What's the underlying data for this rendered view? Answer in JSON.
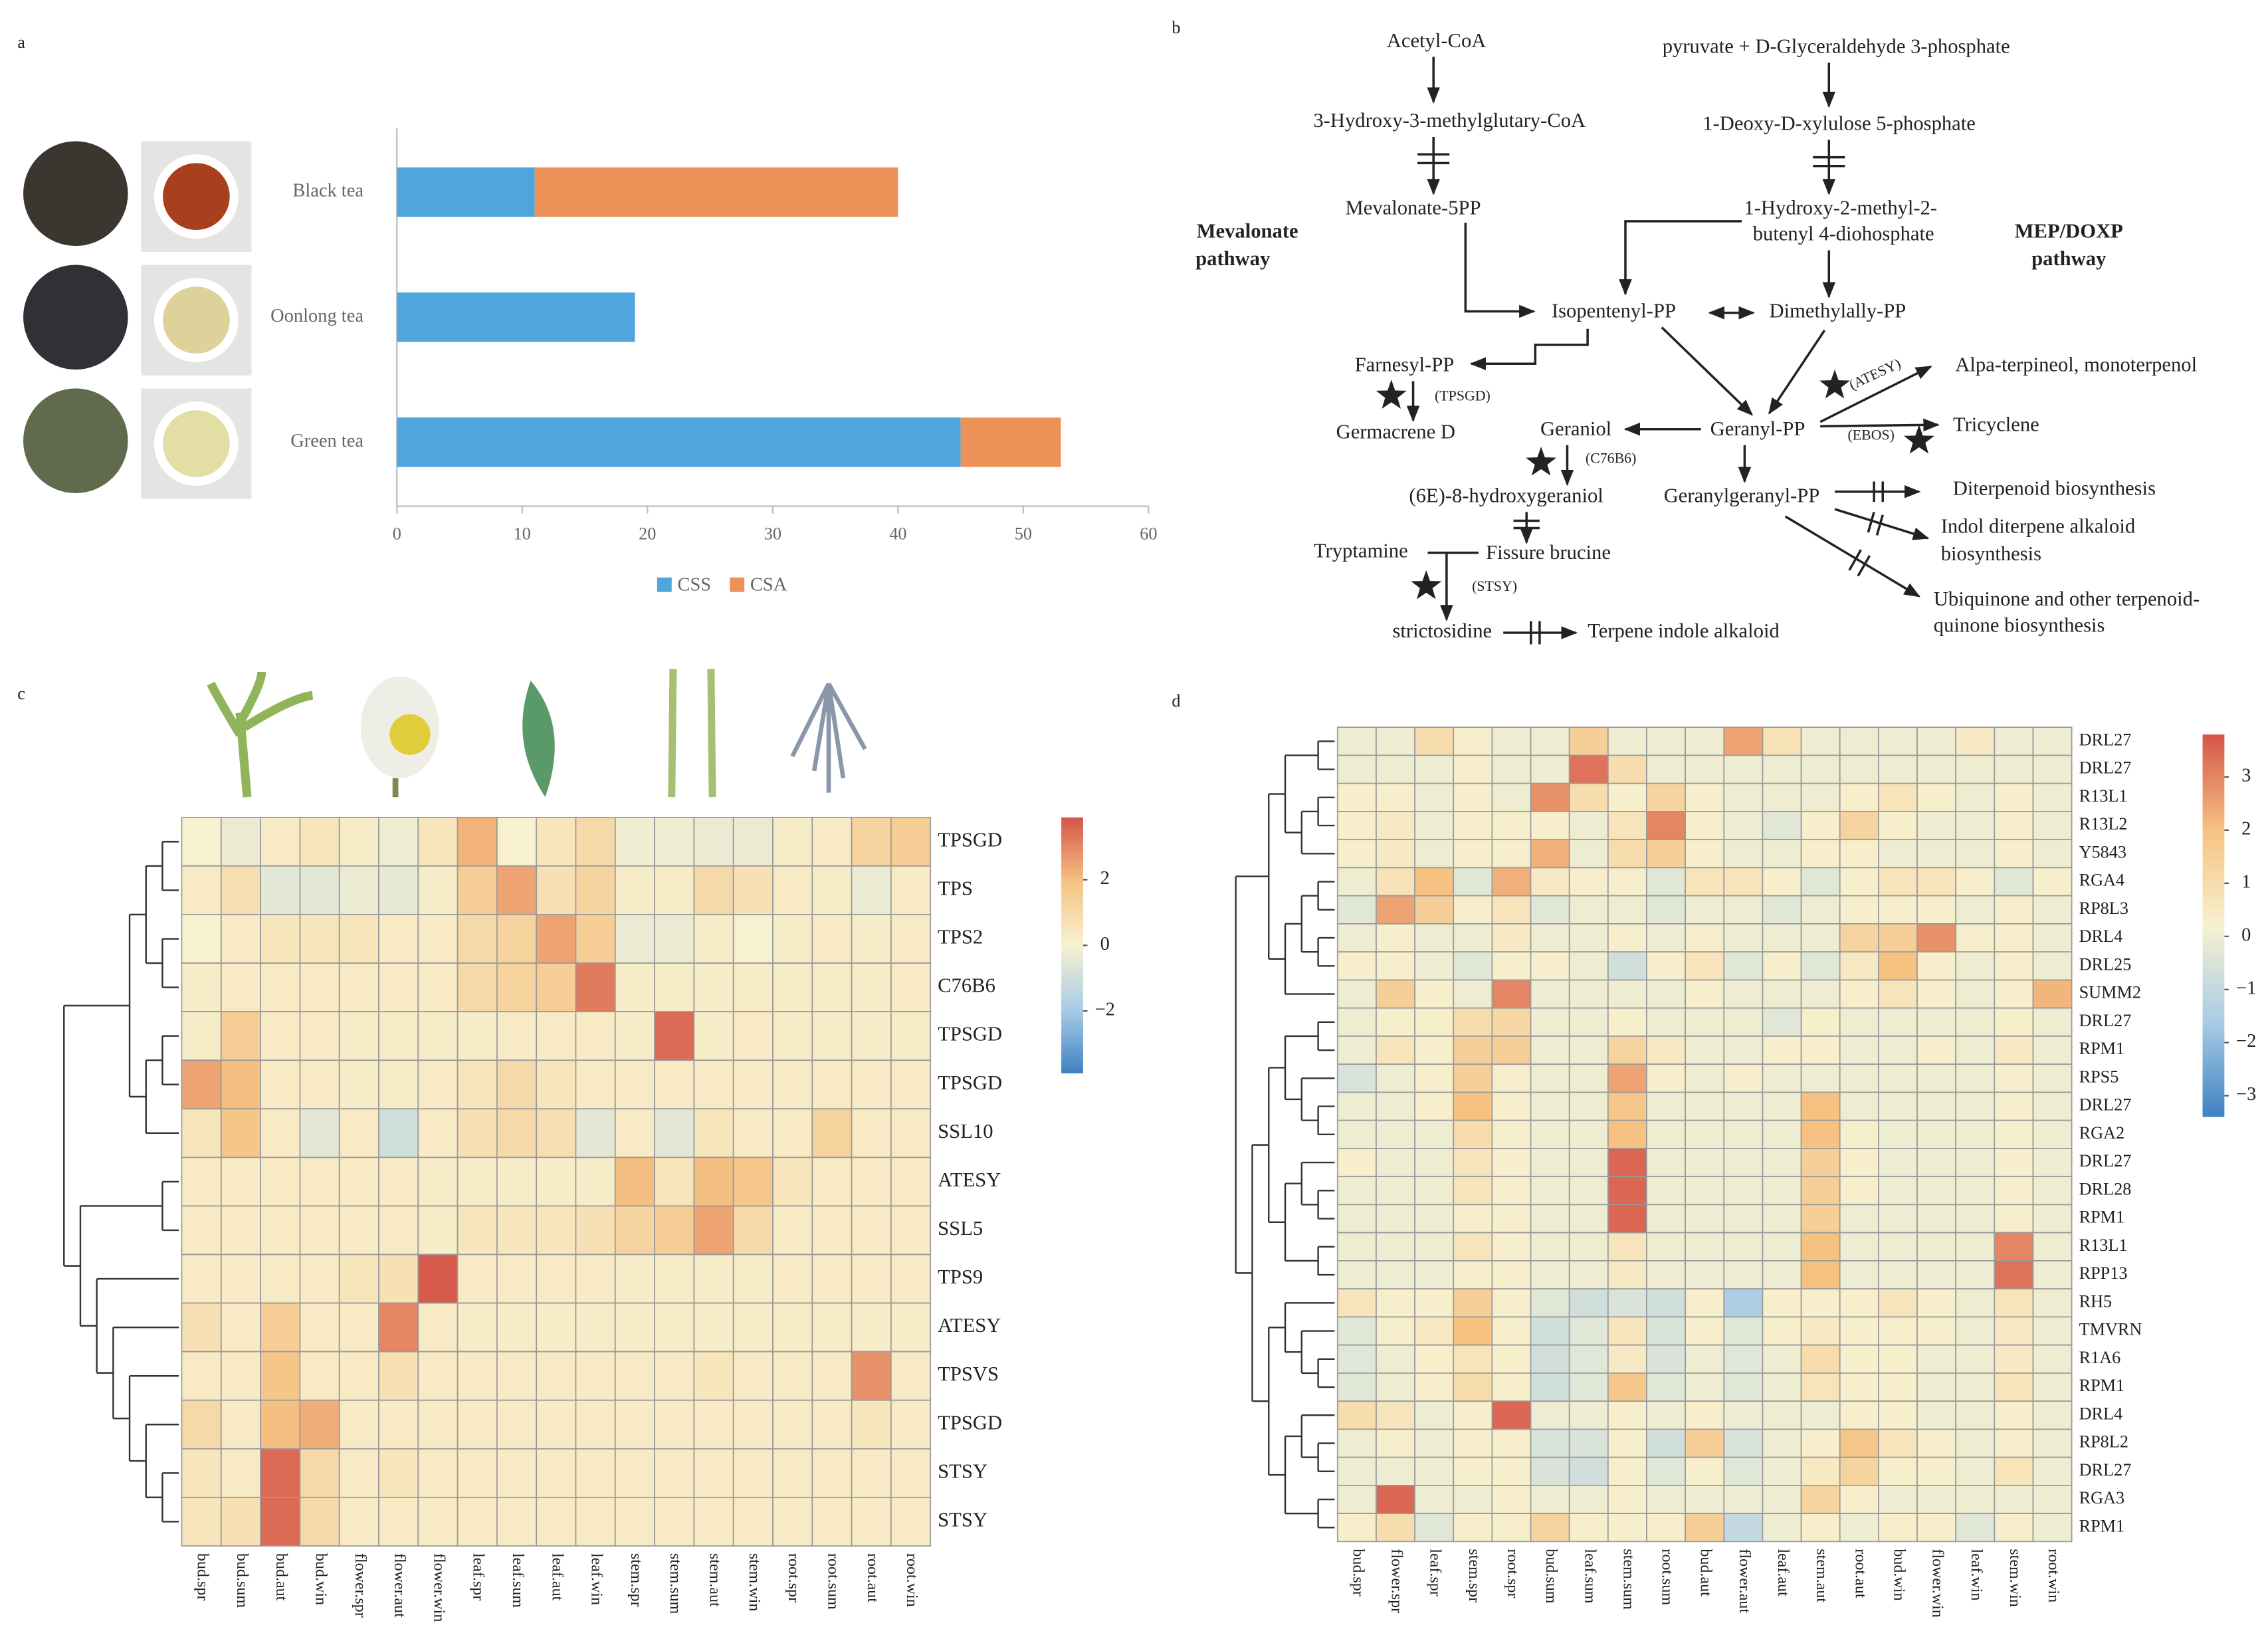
{
  "chart_data": [
    {
      "type": "bar",
      "panel": "a",
      "orientation": "horizontal",
      "stacked": true,
      "legend": "bottom",
      "categories": [
        "Black tea",
        "Oonlong tea",
        "Green tea"
      ],
      "series": [
        {
          "name": "CSS",
          "color": "#4ea6dc",
          "values": [
            11,
            19,
            45
          ]
        },
        {
          "name": "CSA",
          "color": "#ec9158",
          "values": [
            29,
            0,
            8
          ]
        }
      ],
      "xlim": [
        0,
        60
      ],
      "xticks": [
        0,
        10,
        20,
        30,
        40,
        50,
        60
      ]
    },
    {
      "type": "heatmap",
      "panel": "c",
      "rows": [
        "TPSGD",
        "TPS",
        "TPS2",
        "C76B6",
        "TPSGD",
        "TPSGD",
        "SSL10",
        "ATESY",
        "SSL5",
        "TPS9",
        "ATESY",
        "TPSVS",
        "TPSGD",
        "STSY",
        "STSY"
      ],
      "columns": [
        "bud.spr",
        "bud.sum",
        "bud.aut",
        "bud.win",
        "flower.spr",
        "flower.aut",
        "flower.win",
        "leaf.spr",
        "leaf.sum",
        "leaf.aut",
        "leaf.win",
        "stem.spr",
        "stem.sum",
        "stem.aut",
        "stem.win",
        "root.spr",
        "root.sum",
        "root.aut",
        "root.win"
      ],
      "values": [
        [
          0,
          -0.3,
          0.3,
          0.5,
          0.2,
          -0.2,
          0.5,
          2.2,
          0,
          0.5,
          1,
          -0.2,
          -0.2,
          -0.3,
          -0.3,
          0.2,
          0.3,
          1.2,
          1.5
        ],
        [
          0.3,
          0.8,
          -0.5,
          -0.5,
          -0.3,
          -0.4,
          0.2,
          1.5,
          2.5,
          0.7,
          1.2,
          0.2,
          0.2,
          1,
          0.7,
          0.3,
          0.2,
          -0.3,
          0.3
        ],
        [
          0,
          0.3,
          0.5,
          0.5,
          0.5,
          0.3,
          0.3,
          1,
          1.3,
          2.5,
          1.5,
          -0.3,
          -0.3,
          0.2,
          0,
          0.2,
          0.3,
          0.2,
          0.3
        ],
        [
          0.2,
          0.3,
          0.3,
          0.3,
          0.3,
          0.3,
          0.3,
          1,
          1.3,
          1.5,
          3.2,
          0.2,
          0.2,
          0.2,
          0.2,
          0.2,
          0.2,
          0.2,
          0.3
        ],
        [
          0.2,
          1.5,
          0.3,
          0.3,
          0.2,
          0.2,
          0.2,
          0.2,
          0.3,
          0.3,
          0.3,
          0.2,
          3.5,
          0.2,
          0.3,
          0.2,
          0.2,
          0.2,
          0.2
        ],
        [
          2.5,
          2,
          0.3,
          0.3,
          0.2,
          0.2,
          0.3,
          0.5,
          1,
          0.5,
          0.3,
          0.3,
          0.3,
          0.3,
          0.3,
          0.3,
          0.3,
          0.3,
          0.3
        ],
        [
          0.5,
          1.8,
          0.3,
          -0.5,
          0.3,
          -1,
          0.3,
          0.7,
          1,
          0.8,
          -0.5,
          0.3,
          -0.5,
          0.5,
          0.3,
          0.3,
          1.3,
          0.3,
          0.3
        ],
        [
          0.3,
          0.3,
          0.3,
          0.3,
          0.3,
          0.3,
          0.2,
          0.2,
          0.2,
          0.2,
          0.2,
          2,
          0.5,
          2,
          1.7,
          0.5,
          0.3,
          0.3,
          0.3
        ],
        [
          0.3,
          0.3,
          0.3,
          0.3,
          0.3,
          0.3,
          0.2,
          0.5,
          0.5,
          0.5,
          0.7,
          1.2,
          1.5,
          2.5,
          1,
          0.3,
          0.3,
          0.3,
          0.3
        ],
        [
          0.3,
          0.3,
          0.3,
          0.3,
          0.5,
          0.7,
          3.8,
          0.3,
          0.3,
          0.3,
          0.3,
          0.2,
          0.2,
          0.2,
          0.2,
          0.3,
          0.3,
          0.3,
          0.3
        ],
        [
          0.7,
          0.3,
          1.5,
          0.3,
          0.3,
          3,
          0.3,
          0.2,
          0.2,
          0.2,
          0.2,
          0.2,
          0.2,
          0.2,
          0.2,
          0.2,
          0.2,
          0.2,
          0.2
        ],
        [
          0.3,
          0.3,
          1.8,
          0.3,
          0.3,
          0.7,
          0.3,
          0.3,
          0.3,
          0.3,
          0.3,
          0.3,
          0.3,
          0.5,
          0.3,
          0.3,
          0.3,
          2.8,
          0.3
        ],
        [
          1,
          0.3,
          2,
          2.3,
          0.3,
          0.3,
          0.3,
          0.3,
          0.3,
          0.3,
          0.3,
          0.3,
          0.3,
          0.3,
          0.3,
          0.3,
          0.3,
          0.5,
          0.3
        ],
        [
          0.5,
          0.3,
          3.5,
          1,
          0.3,
          0.5,
          0.3,
          0.3,
          0.3,
          0.3,
          0.3,
          0.3,
          0.3,
          0.3,
          0.3,
          0.3,
          0.3,
          0.3,
          0.3
        ],
        [
          0.5,
          0.7,
          3.5,
          1,
          0.3,
          0.3,
          0.3,
          0.3,
          0.3,
          0.3,
          0.3,
          0.3,
          0.3,
          0.3,
          0.3,
          0.3,
          0.3,
          0.3,
          0.3
        ]
      ],
      "clim": [
        -3.9,
        3.9
      ],
      "cticks": [
        2,
        0,
        {
          "value": -2,
          "label": "−2"
        }
      ],
      "colors": [
        "#3e82c2",
        "#a9cce6",
        "#f7f1d0",
        "#f6c282",
        "#d5544a"
      ]
    },
    {
      "type": "heatmap",
      "panel": "d",
      "rows": [
        "DRL27",
        "DRL27",
        "R13L1",
        "R13L2",
        "Y5843",
        "RGA4",
        "RP8L3",
        "DRL4",
        "DRL25",
        "SUMM2",
        "DRL27",
        "RPM1",
        "RPS5",
        "DRL27",
        "RGA2",
        "DRL27",
        "DRL28",
        "RPM1",
        "R13L1",
        "RPP13",
        "RH5",
        "TMVRN",
        "R1A6",
        "RPM1",
        "DRL4",
        "RP8L2",
        "DRL27",
        "RGA3",
        "RPM1"
      ],
      "columns": [
        "bud.spr",
        "flower.spr",
        "leaf.spr",
        "stem.spr",
        "root.spr",
        "bud.sum",
        "leaf.sum",
        "stem.sum",
        "root.sum",
        "bud.aut",
        "flower.aut",
        "leaf.aut",
        "stem.aut",
        "root.aut",
        "bud.win",
        "flower.win",
        "leaf.win",
        "stem.win",
        "root.win"
      ],
      "values": [
        [
          0,
          0,
          1,
          0.3,
          0,
          0,
          1.5,
          0,
          0,
          0,
          2.5,
          0.8,
          0,
          0,
          0,
          0,
          0.5,
          0,
          0
        ],
        [
          0,
          0,
          0,
          0.3,
          0,
          0,
          3.3,
          1,
          0,
          0,
          0,
          0,
          0,
          0,
          0,
          0,
          0,
          0,
          0
        ],
        [
          0.3,
          0.3,
          0,
          0.3,
          0,
          2.8,
          1,
          0.3,
          1.3,
          0.3,
          0,
          0,
          0,
          0.3,
          0.7,
          0.3,
          0,
          0.3,
          0
        ],
        [
          0.3,
          0.5,
          0,
          0.3,
          0.3,
          0.3,
          0,
          0.7,
          3,
          0.3,
          0,
          -0.3,
          0.3,
          1.3,
          0.3,
          0,
          0,
          0.3,
          0
        ],
        [
          0.3,
          0.5,
          0,
          0.3,
          0.3,
          2.3,
          0,
          1,
          1.5,
          0.3,
          0,
          0,
          0.3,
          0.3,
          0,
          0,
          0,
          0.3,
          0
        ],
        [
          0,
          0.8,
          2,
          -0.3,
          2.3,
          0.5,
          0.3,
          0.3,
          -0.3,
          0.7,
          0.7,
          0.3,
          -0.3,
          0.3,
          0.7,
          0.7,
          0.3,
          -0.3,
          0.3
        ],
        [
          -0.3,
          2.5,
          1.5,
          0.3,
          0.7,
          -0.3,
          0,
          0,
          -0.3,
          0,
          0,
          -0.3,
          0,
          0.3,
          0.3,
          0.3,
          0,
          0.3,
          0
        ],
        [
          0,
          0.3,
          0,
          0,
          0.5,
          0,
          0,
          0.3,
          0,
          0.3,
          0,
          0,
          0,
          1.3,
          1.5,
          2.8,
          0.3,
          0.3,
          0
        ],
        [
          0.3,
          0.3,
          0,
          -0.3,
          0.3,
          0.3,
          0,
          -0.7,
          0.3,
          0.7,
          -0.3,
          0.3,
          -0.3,
          0.5,
          2,
          0.3,
          0,
          0.3,
          0
        ],
        [
          0,
          1.5,
          0.3,
          0,
          3,
          0,
          0,
          0,
          0,
          0.3,
          0,
          0,
          0,
          0.3,
          0.7,
          0.3,
          0,
          0.3,
          2.2
        ],
        [
          0,
          0.3,
          0.3,
          1,
          1.2,
          0,
          0,
          0.3,
          0,
          0,
          0,
          -0.3,
          0.3,
          0,
          0,
          0,
          0,
          0.3,
          0
        ],
        [
          0,
          0.7,
          0.3,
          1.5,
          1.5,
          0,
          0,
          1.3,
          0.5,
          0,
          0,
          0.3,
          0.3,
          0,
          0,
          0.3,
          0,
          0.5,
          0
        ],
        [
          -0.5,
          0,
          0.3,
          1.5,
          0.3,
          0,
          0,
          2.5,
          0.3,
          0,
          0.3,
          0,
          0,
          0,
          0,
          0,
          0,
          0.3,
          0
        ],
        [
          0,
          0,
          0.3,
          2,
          0.3,
          0,
          0,
          1.8,
          0,
          0,
          0,
          0,
          2,
          0,
          0,
          0,
          0,
          0.3,
          0
        ],
        [
          0,
          0,
          0,
          1,
          0.3,
          0,
          0,
          2,
          0,
          0,
          0,
          0,
          2,
          0.3,
          0,
          0,
          0,
          0.3,
          0
        ],
        [
          0.3,
          0,
          0,
          0.7,
          0.3,
          0,
          0,
          3.5,
          0,
          0,
          0,
          0,
          1.5,
          0.3,
          0,
          0,
          0,
          0.3,
          0
        ],
        [
          0,
          0,
          0,
          0.7,
          0.3,
          0,
          0,
          3.5,
          0,
          0,
          0,
          0,
          1.5,
          0.3,
          0,
          0,
          0,
          0.3,
          0
        ],
        [
          0,
          0,
          0,
          0.3,
          0.3,
          0,
          0,
          3.5,
          0,
          0,
          0,
          0,
          1.5,
          0,
          0,
          0,
          0,
          0.3,
          0
        ],
        [
          0,
          0,
          0,
          0.7,
          0.3,
          0,
          0,
          0.7,
          0,
          0,
          0,
          0,
          2,
          0,
          0,
          0,
          0,
          3,
          0
        ],
        [
          0,
          0,
          0,
          0.3,
          0.3,
          0,
          0,
          0.5,
          0,
          0,
          0,
          0,
          2,
          0,
          0,
          0,
          0,
          3.3,
          0
        ],
        [
          0.7,
          0.3,
          0.3,
          1.5,
          0.3,
          -0.3,
          -0.7,
          -0.5,
          -0.7,
          0.3,
          -1.5,
          0.3,
          0.3,
          0.3,
          0.7,
          0.3,
          0,
          0.7,
          0
        ],
        [
          -0.3,
          0.3,
          0.5,
          2,
          0.3,
          -0.7,
          -0.3,
          0.7,
          -0.5,
          0.3,
          -0.3,
          0.3,
          0.5,
          0.3,
          0.3,
          0.3,
          0,
          0.5,
          0
        ],
        [
          -0.3,
          0,
          0.3,
          0.7,
          0.3,
          -0.7,
          -0.3,
          0.5,
          -0.5,
          0,
          -0.3,
          0,
          1,
          0.3,
          0.3,
          0,
          0,
          0.5,
          0
        ],
        [
          -0.3,
          0,
          0.3,
          1,
          0.3,
          -0.7,
          -0.3,
          1.8,
          -0.3,
          0,
          -0.3,
          0,
          0.7,
          0.3,
          0.3,
          0,
          0,
          0.7,
          0
        ],
        [
          1,
          0.7,
          0,
          0.3,
          3.5,
          0,
          0,
          0.3,
          0,
          0.3,
          0,
          0,
          0,
          0.3,
          0.3,
          0,
          0,
          0.3,
          0
        ],
        [
          0,
          0.3,
          0,
          0.3,
          0.3,
          -0.5,
          -0.5,
          0.3,
          -0.7,
          1.5,
          -0.5,
          0,
          0.3,
          1.8,
          0.7,
          0.3,
          0,
          0.3,
          0
        ],
        [
          0,
          0,
          0,
          0.3,
          0.3,
          -0.5,
          -0.7,
          0.3,
          -0.3,
          0.3,
          -0.3,
          0,
          0.5,
          1.3,
          0.3,
          0.3,
          0,
          0.7,
          0
        ],
        [
          0,
          3.5,
          0,
          0,
          0.3,
          0,
          0,
          0.3,
          0,
          0,
          0,
          0,
          1.3,
          0.3,
          0,
          0,
          0,
          0,
          0
        ],
        [
          0.3,
          1,
          -0.3,
          0.3,
          0.3,
          1.3,
          0.3,
          0.3,
          0.3,
          1.5,
          -1,
          0,
          0.3,
          0,
          0.3,
          0.3,
          -0.3,
          0.3,
          0
        ]
      ],
      "clim": [
        -3.4,
        3.8
      ],
      "cticks": [
        3,
        2,
        1,
        0,
        {
          "value": -1,
          "label": "−1"
        },
        {
          "value": -2,
          "label": "−2"
        },
        {
          "value": -3,
          "label": "−3"
        }
      ],
      "colors": [
        "#3e82c2",
        "#a9cce6",
        "#f7f1d0",
        "#f6c282",
        "#d5544a"
      ]
    }
  ],
  "pathway": {
    "panel": "b",
    "labels": [
      "Acetyl-CoA",
      "3-Hydroxy-3-methylglutary-CoA",
      "Mevalonate-5PP",
      "pyruvate + D-Glyceraldehyde 3-phosphate",
      "1-Deoxy-D-xylulose 5-phosphate",
      "1-Hydroxy-2-methyl-2-",
      "butenyl 4-diohosphate",
      "Mevalonate",
      "pathway",
      "MEP/DOXP",
      "pathway",
      "Isopentenyl-PP",
      "Dimethylally-PP",
      "Farnesyl-PP",
      "(TPSGD)",
      "Germacrene D",
      "Geraniol",
      "(C76B6)",
      "Geranyl-PP",
      "(6E)-8-hydroxygeraniol",
      "Geranylgeranyl-PP",
      "Alpa-terpineol, monoterpenol",
      "(ATESY)",
      "Tricyclene",
      "(EBOS)",
      "Diterpenoid biosynthesis",
      "Indol diterpene alkaloid",
      "biosynthesis",
      "Tryptamine",
      "Fissure brucine",
      "(STSY)",
      "strictosidine",
      "Terpene indole alkaloid",
      "Ubiquinone and other terpenoid-",
      "quinone biosynthesis"
    ]
  }
}
